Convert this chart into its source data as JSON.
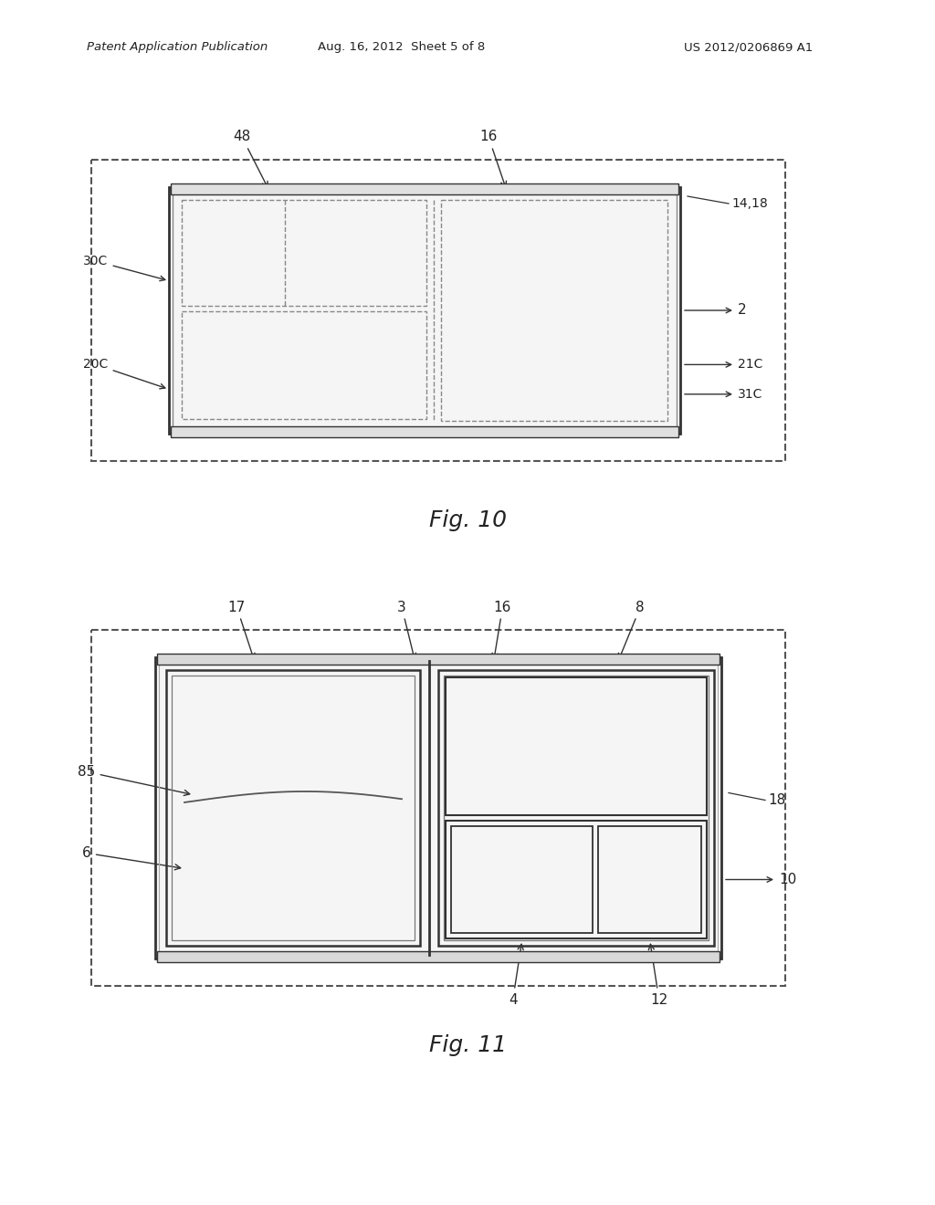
{
  "bg_color": "#ffffff",
  "header_text": "Patent Application Publication",
  "header_date": "Aug. 16, 2012  Sheet 5 of 8",
  "header_patent": "US 2012/0206869 A1",
  "fig10_label": "Fig. 10",
  "fig11_label": "Fig. 11",
  "line_color": "#333333",
  "dash_color": "#555555",
  "text_color": "#222222"
}
